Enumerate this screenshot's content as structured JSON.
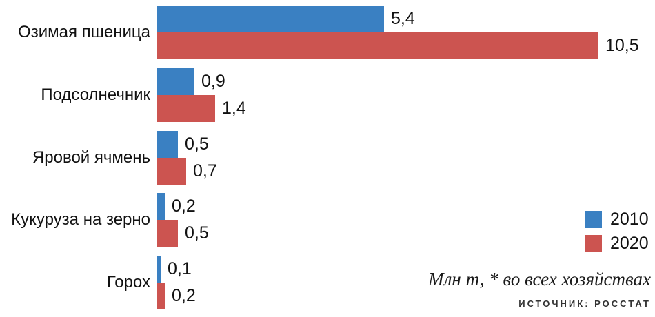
{
  "chart_data": {
    "type": "bar",
    "orientation": "horizontal",
    "title": "",
    "categories": [
      "Озимая пшеница",
      "Подсолнечник",
      "Яровой ячмень",
      "Кукуруза на зерно",
      "Горох"
    ],
    "series": [
      {
        "name": "2010",
        "color": "#3a80c2",
        "values": [
          5.4,
          0.9,
          0.5,
          0.2,
          0.1
        ],
        "labels": [
          "5,4",
          "0,9",
          "0,5",
          "0,2",
          "0,1"
        ]
      },
      {
        "name": "2020",
        "color": "#cc5450",
        "values": [
          10.5,
          1.4,
          0.7,
          0.5,
          0.2
        ],
        "labels": [
          "10,5",
          "1,4",
          "0,7",
          "0,5",
          "0,2"
        ]
      }
    ],
    "xlim": [
      0,
      10.5
    ],
    "grid": false,
    "legend_position": "right-middle",
    "legend": [
      {
        "label": "2010",
        "color": "#3a80c2"
      },
      {
        "label": "2020",
        "color": "#cc5450"
      }
    ],
    "unit_note": "Млн т, * во всех хозяйствах",
    "source": "ИСТОЧНИК: РОССТАТ"
  },
  "colors": {
    "series_2010": "#3a80c2",
    "series_2020": "#cc5450",
    "text": "#111111",
    "source_text": "#333333"
  }
}
